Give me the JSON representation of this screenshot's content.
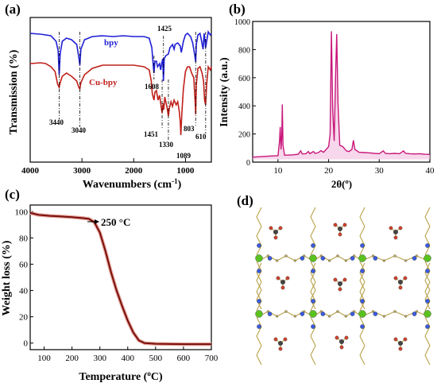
{
  "chart_data": [
    {
      "type": "line",
      "panel_label": "(a)",
      "xlabel": "Wavenumbers (cm",
      "xlabel_sup": "-1",
      "xlabel_close": ")",
      "ylabel": "Transmission (%)",
      "xlim": [
        4000,
        500
      ],
      "x_ticks": [
        "4000",
        "3000",
        "2000",
        "1000"
      ],
      "x_tick_values": [
        4000,
        3000,
        2000,
        1000
      ],
      "y_ticks_shown": false,
      "series": [
        {
          "name": "bpy",
          "color": "#1f1fd6",
          "points": [
            [
              4000,
              20
            ],
            [
              3800,
              21
            ],
            [
              3600,
              23
            ],
            [
              3500,
              30
            ],
            [
              3460,
              42
            ],
            [
              3440,
              72
            ],
            [
              3420,
              45
            ],
            [
              3380,
              30
            ],
            [
              3300,
              26
            ],
            [
              3200,
              28
            ],
            [
              3100,
              34
            ],
            [
              3060,
              50
            ],
            [
              3040,
              60
            ],
            [
              3020,
              40
            ],
            [
              2950,
              28
            ],
            [
              2800,
              24
            ],
            [
              2600,
              23
            ],
            [
              2400,
              24
            ],
            [
              2200,
              23
            ],
            [
              2000,
              24
            ],
            [
              1800,
              24
            ],
            [
              1700,
              26
            ],
            [
              1650,
              38
            ],
            [
              1620,
              62
            ],
            [
              1608,
              70
            ],
            [
              1590,
              55
            ],
            [
              1560,
              55
            ],
            [
              1540,
              62
            ],
            [
              1500,
              58
            ],
            [
              1480,
              66
            ],
            [
              1460,
              58
            ],
            [
              1440,
              52
            ],
            [
              1425,
              80
            ],
            [
              1410,
              52
            ],
            [
              1380,
              48
            ],
            [
              1330,
              46
            ],
            [
              1300,
              38
            ],
            [
              1250,
              34
            ],
            [
              1220,
              40
            ],
            [
              1200,
              34
            ],
            [
              1150,
              32
            ],
            [
              1100,
              36
            ],
            [
              1080,
              44
            ],
            [
              1040,
              30
            ],
            [
              1000,
              22
            ],
            [
              960,
              20
            ],
            [
              900,
              24
            ],
            [
              860,
              32
            ],
            [
              820,
              48
            ],
            [
              803,
              56
            ],
            [
              790,
              34
            ],
            [
              760,
              22
            ],
            [
              720,
              20
            ],
            [
              700,
              26
            ],
            [
              660,
              40
            ],
            [
              640,
              20
            ],
            [
              610,
              38
            ],
            [
              590,
              30
            ],
            [
              560,
              18
            ],
            [
              520,
              22
            ],
            [
              500,
              20
            ]
          ]
        },
        {
          "name": "Cu-bpy",
          "color": "#c0201a",
          "points": [
            [
              4000,
              58
            ],
            [
              3800,
              57
            ],
            [
              3700,
              58
            ],
            [
              3600,
              62
            ],
            [
              3520,
              68
            ],
            [
              3470,
              84
            ],
            [
              3440,
              88
            ],
            [
              3420,
              82
            ],
            [
              3380,
              74
            ],
            [
              3300,
              70
            ],
            [
              3200,
              74
            ],
            [
              3100,
              80
            ],
            [
              3060,
              88
            ],
            [
              3040,
              90
            ],
            [
              3020,
              82
            ],
            [
              2950,
              72
            ],
            [
              2800,
              64
            ],
            [
              2600,
              60
            ],
            [
              2400,
              60
            ],
            [
              2200,
              60
            ],
            [
              2000,
              60
            ],
            [
              1800,
              62
            ],
            [
              1700,
              66
            ],
            [
              1660,
              80
            ],
            [
              1640,
              96
            ],
            [
              1608,
              104
            ],
            [
              1590,
              94
            ],
            [
              1560,
              92
            ],
            [
              1530,
              104
            ],
            [
              1500,
              98
            ],
            [
              1470,
              112
            ],
            [
              1451,
              120
            ],
            [
              1430,
              108
            ],
            [
              1420,
              116
            ],
            [
              1400,
              100
            ],
            [
              1380,
              106
            ],
            [
              1360,
              112
            ],
            [
              1345,
              118
            ],
            [
              1330,
              124
            ],
            [
              1310,
              114
            ],
            [
              1280,
              106
            ],
            [
              1250,
              112
            ],
            [
              1220,
              104
            ],
            [
              1180,
              110
            ],
            [
              1150,
              106
            ],
            [
              1120,
              118
            ],
            [
              1100,
              132
            ],
            [
              1089,
              148
            ],
            [
              1070,
              120
            ],
            [
              1040,
              90
            ],
            [
              1000,
              68
            ],
            [
              960,
              62
            ],
            [
              920,
              62
            ],
            [
              880,
              70
            ],
            [
              840,
              76
            ],
            [
              810,
              110
            ],
            [
              803,
              122
            ],
            [
              790,
              84
            ],
            [
              760,
              64
            ],
            [
              720,
              62
            ],
            [
              680,
              70
            ],
            [
              650,
              80
            ],
            [
              630,
              104
            ],
            [
              610,
              110
            ],
            [
              590,
              84
            ],
            [
              560,
              62
            ],
            [
              520,
              66
            ],
            [
              500,
              62
            ]
          ]
        }
      ],
      "annotations": [
        "3440",
        "3040",
        "1608",
        "1425",
        "1451",
        "1330",
        "1089",
        "803",
        "610"
      ]
    },
    {
      "type": "line",
      "panel_label": "(b)",
      "xlabel": "2θ(º)",
      "ylabel": "Intensity (a.u.)",
      "xlim": [
        5,
        40
      ],
      "ylim": [
        0,
        1000
      ],
      "x_ticks": [
        "10",
        "20",
        "30",
        "40"
      ],
      "x_tick_values": [
        10,
        20,
        30,
        40
      ],
      "y_ticks": [
        "0",
        "200",
        "400",
        "600",
        "800",
        "1000"
      ],
      "y_tick_values": [
        0,
        200,
        400,
        600,
        800,
        1000
      ],
      "series": [
        {
          "color": "#c8177a",
          "points": [
            [
              5,
              35
            ],
            [
              6,
              38
            ],
            [
              7,
              40
            ],
            [
              8,
              42
            ],
            [
              9,
              44
            ],
            [
              10,
              46
            ],
            [
              10.3,
              150
            ],
            [
              10.45,
              250
            ],
            [
              10.6,
              90
            ],
            [
              10.75,
              180
            ],
            [
              10.85,
              410
            ],
            [
              11,
              120
            ],
            [
              11.3,
              50
            ],
            [
              12,
              50
            ],
            [
              13,
              52
            ],
            [
              14,
              56
            ],
            [
              14.5,
              80
            ],
            [
              14.8,
              58
            ],
            [
              15.5,
              60
            ],
            [
              16,
              75
            ],
            [
              16.3,
              60
            ],
            [
              17,
              75
            ],
            [
              17.3,
              62
            ],
            [
              18,
              68
            ],
            [
              18.5,
              82
            ],
            [
              19,
              70
            ],
            [
              19.5,
              90
            ],
            [
              20,
              110
            ],
            [
              20.3,
              200
            ],
            [
              20.55,
              930
            ],
            [
              20.8,
              380
            ],
            [
              21.1,
              150
            ],
            [
              21.4,
              650
            ],
            [
              21.6,
              910
            ],
            [
              21.85,
              420
            ],
            [
              22.2,
              120
            ],
            [
              22.8,
              110
            ],
            [
              23.5,
              80
            ],
            [
              24,
              75
            ],
            [
              24.6,
              90
            ],
            [
              24.9,
              155
            ],
            [
              25.2,
              90
            ],
            [
              26,
              70
            ],
            [
              27,
              68
            ],
            [
              28,
              66
            ],
            [
              29,
              62
            ],
            [
              30,
              60
            ],
            [
              30.8,
              80
            ],
            [
              31.2,
              62
            ],
            [
              32,
              60
            ],
            [
              33,
              62
            ],
            [
              34,
              60
            ],
            [
              34.8,
              80
            ],
            [
              35.2,
              62
            ],
            [
              36,
              60
            ],
            [
              37,
              58
            ],
            [
              38,
              60
            ],
            [
              39,
              56
            ],
            [
              40,
              55
            ]
          ]
        }
      ]
    },
    {
      "type": "line",
      "panel_label": "(c)",
      "xlabel": "Temperature (",
      "xlabel_sup": "o",
      "xlabel_close": "C)",
      "ylabel": "Weight loss (%)",
      "xlim": [
        50,
        700
      ],
      "ylim": [
        -5,
        105
      ],
      "x_ticks": [
        "100",
        "200",
        "300",
        "400",
        "500",
        "600",
        "700"
      ],
      "x_tick_values": [
        100,
        200,
        300,
        400,
        500,
        600,
        700
      ],
      "y_ticks": [
        "0",
        "20",
        "40",
        "60",
        "80",
        "100"
      ],
      "y_tick_values": [
        0,
        20,
        40,
        60,
        80,
        100
      ],
      "annotation": "250 °C",
      "series": [
        {
          "color": "#7a0f0a",
          "points": [
            [
              50,
              99
            ],
            [
              80,
              97.5
            ],
            [
              120,
              96.8
            ],
            [
              160,
              96.3
            ],
            [
              200,
              95.8
            ],
            [
              240,
              95
            ],
            [
              260,
              94.5
            ],
            [
              280,
              92
            ],
            [
              300,
              84
            ],
            [
              320,
              70
            ],
            [
              340,
              54
            ],
            [
              360,
              40
            ],
            [
              380,
              28
            ],
            [
              400,
              17
            ],
            [
              420,
              8
            ],
            [
              440,
              2
            ],
            [
              460,
              0
            ],
            [
              500,
              -0.5
            ],
            [
              600,
              -0.8
            ],
            [
              700,
              -0.8
            ]
          ]
        }
      ]
    }
  ],
  "panel_d": {
    "label": "(d)"
  }
}
